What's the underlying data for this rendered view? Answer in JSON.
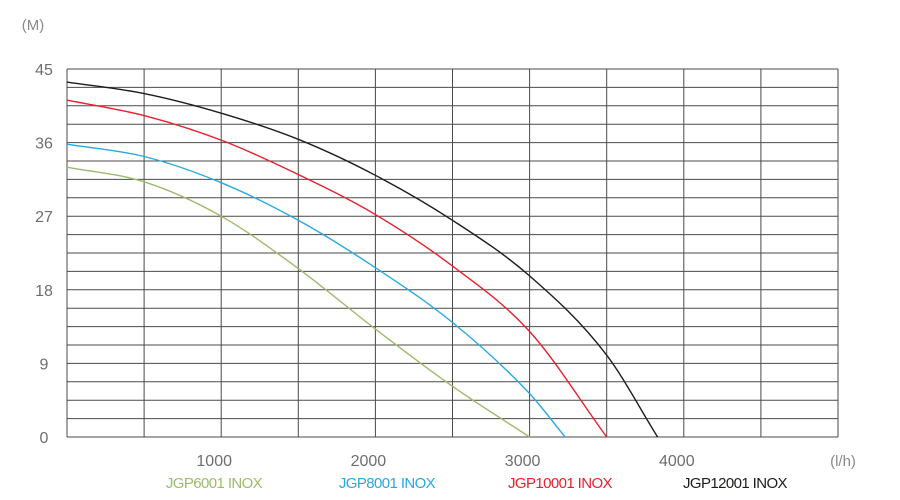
{
  "chart_data": {
    "type": "line",
    "title": "",
    "ylabel": "(M)",
    "xlabel": "(l/h)",
    "xlim": [
      0,
      5000
    ],
    "ylim": [
      0,
      45
    ],
    "grid": true,
    "legend_position": "bottom",
    "x_ticks": [
      {
        "value": 1000,
        "label": "1000"
      },
      {
        "value": 2000,
        "label": "2000"
      },
      {
        "value": 3000,
        "label": "3000"
      },
      {
        "value": 4000,
        "label": "4000"
      }
    ],
    "y_ticks": [
      {
        "value": 0,
        "label": "0"
      },
      {
        "value": 9,
        "label": "9"
      },
      {
        "value": 18,
        "label": "18"
      },
      {
        "value": 27,
        "label": "27"
      },
      {
        "value": 36,
        "label": "36"
      },
      {
        "value": 45,
        "label": "45"
      }
    ],
    "series": [
      {
        "name": "JGP6001 INOX",
        "color": "#9dbb6a",
        "x": [
          0,
          500,
          1000,
          1500,
          2000,
          2500,
          3000
        ],
        "y": [
          33,
          31.2,
          27,
          20.6,
          13.2,
          6.2,
          0
        ]
      },
      {
        "name": "JGP8001 INOX",
        "color": "#29a9e0",
        "x": [
          0,
          500,
          1000,
          1500,
          2000,
          2500,
          3000,
          3230
        ],
        "y": [
          35.8,
          34.3,
          31.1,
          26.5,
          20.7,
          14,
          5.3,
          0
        ]
      },
      {
        "name": "JGP10001 INOX",
        "color": "#e8202d",
        "x": [
          0,
          500,
          1000,
          1500,
          2000,
          2500,
          3000,
          3500
        ],
        "y": [
          41.2,
          39.3,
          36.3,
          32.1,
          27.2,
          20.9,
          12.9,
          0
        ]
      },
      {
        "name": "JGP12001 INOX",
        "color": "#1d1d1b",
        "x": [
          0,
          500,
          1000,
          1500,
          2000,
          2500,
          3000,
          3500,
          3830
        ],
        "y": [
          43.4,
          42,
          39.6,
          36.4,
          32,
          26.5,
          19.7,
          10,
          0
        ]
      }
    ]
  }
}
